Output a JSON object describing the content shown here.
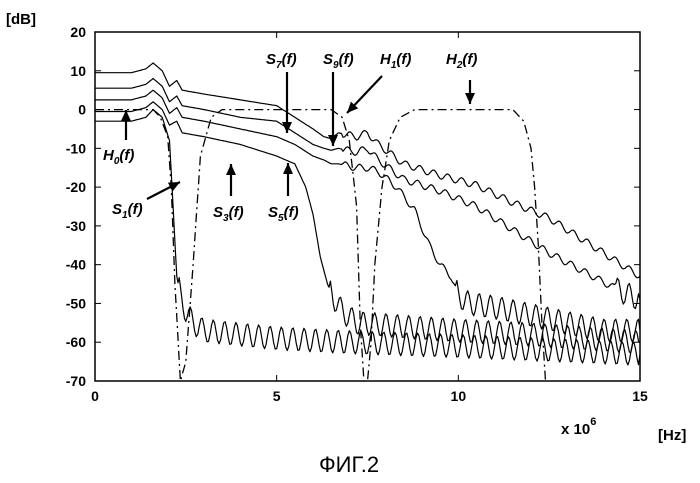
{
  "caption": "ФИГ.2",
  "chart_data": {
    "type": "line",
    "title": "",
    "ylabel": "[dB]",
    "xlabel": "[Hz]",
    "x_multiplier_label": "x 10",
    "x_multiplier_exp": "6",
    "xlim": [
      0,
      15
    ],
    "ylim": [
      -70,
      20
    ],
    "x_ticks": [
      "0",
      "5",
      "10",
      "15"
    ],
    "y_ticks": [
      "20",
      "10",
      "0",
      "-10",
      "-20",
      "-30",
      "-40",
      "-50",
      "-60",
      "-70"
    ],
    "grid": false,
    "legend": "none",
    "annotations": [
      {
        "text": "H",
        "sub": "0",
        "suffix": "(f)"
      },
      {
        "text": "S",
        "sub": "1",
        "suffix": "(f)"
      },
      {
        "text": "S",
        "sub": "3",
        "suffix": "(f)"
      },
      {
        "text": "S",
        "sub": "5",
        "suffix": "(f)"
      },
      {
        "text": "S",
        "sub": "7",
        "suffix": "(f)"
      },
      {
        "text": "S",
        "sub": "9",
        "suffix": "(f)"
      },
      {
        "text": "H",
        "sub": "1",
        "suffix": "(f)"
      },
      {
        "text": "H",
        "sub": "2",
        "suffix": "(f)"
      }
    ],
    "series": [
      {
        "style": "solid",
        "x": [
          0,
          1.0,
          1.4,
          1.6,
          1.85,
          2.05,
          2.25,
          2.4,
          3.0,
          4.0,
          5.0,
          5.5,
          6.0,
          6.3,
          6.5,
          6.7,
          7.2,
          7.5,
          7.8,
          8.5,
          9.5,
          10.5,
          11.5,
          12.5,
          13.5,
          14.5,
          15
        ],
        "y": [
          9.5,
          9.5,
          10.5,
          12,
          10,
          6,
          7.5,
          5,
          4,
          2.5,
          1,
          -2,
          -5,
          -7,
          -7.5,
          -6,
          -7,
          -6,
          -9,
          -14,
          -17,
          -19.5,
          -24,
          -28,
          -34,
          -40,
          -43
        ]
      },
      {
        "style": "solid",
        "x": [
          0,
          1.0,
          1.4,
          1.6,
          1.85,
          2.05,
          2.25,
          2.4,
          3.0,
          4.0,
          5.0,
          5.5,
          6.0,
          6.3,
          6.5,
          6.7,
          7.2,
          7.5,
          7.8,
          8.5,
          9.5,
          10.5,
          11.5,
          12.5,
          13.5,
          14.5,
          15
        ],
        "y": [
          5.5,
          5.5,
          6.5,
          8,
          6,
          2,
          3.5,
          1,
          0,
          -2,
          -3,
          -6,
          -9,
          -10,
          -10.5,
          -10,
          -11,
          -10,
          -13,
          -18,
          -21,
          -25,
          -31,
          -37,
          -42,
          -47,
          -49
        ]
      },
      {
        "style": "solid",
        "x": [
          0,
          1.0,
          1.4,
          1.6,
          1.85,
          2.05,
          2.25,
          2.4,
          3.0,
          4.0,
          5.0,
          5.5,
          6.0,
          6.3,
          6.5,
          6.7,
          7.2,
          7.5,
          7.8,
          8.3,
          8.8,
          9.2,
          9.5,
          9.8,
          10.0,
          10.3,
          11.0,
          12.0,
          13.0,
          14.0,
          15
        ],
        "y": [
          2.5,
          2.5,
          3.5,
          5,
          3,
          -1,
          0.5,
          -2,
          -3,
          -5,
          -7,
          -9,
          -12,
          -13,
          -14,
          -14,
          -15,
          -15,
          -16,
          -20,
          -26,
          -35,
          -40,
          -43,
          -48,
          -50,
          -51,
          -53,
          -55,
          -57,
          -57
        ]
      },
      {
        "style": "solid",
        "x": [
          0,
          1.0,
          1.4,
          1.6,
          1.85,
          2.05,
          2.25,
          2.4,
          3.0,
          4.0,
          5.0,
          5.5,
          5.8,
          6.0,
          6.2,
          6.4,
          6.6,
          6.8,
          7.2,
          8.5,
          10,
          12,
          15
        ],
        "y": [
          -0.5,
          -0.5,
          0.5,
          2,
          0,
          -4,
          -3,
          -6,
          -7,
          -9,
          -12,
          -14,
          -20,
          -27,
          -38,
          -45,
          -49,
          -52,
          -55,
          -56,
          -57,
          -58,
          -60
        ]
      },
      {
        "style": "solid",
        "x": [
          0,
          1.0,
          1.4,
          1.6,
          1.85,
          2.05,
          2.15,
          2.25,
          2.35,
          2.5,
          2.7,
          3.0,
          4.0,
          5.0,
          7.0,
          10,
          15
        ],
        "y": [
          -3,
          -3,
          -2,
          0,
          -2,
          -8,
          -25,
          -43,
          -48,
          -52,
          -55,
          -57,
          -58,
          -59,
          -60,
          -61,
          -63
        ]
      },
      {
        "style": "dashdot",
        "x": [
          0,
          1.6,
          1.8,
          2.0,
          2.1,
          2.2,
          2.35,
          2.5,
          2.7,
          2.9,
          3.2,
          3.5,
          4.0,
          6.0,
          6.5,
          6.8,
          7.0,
          7.2,
          7.3,
          7.4,
          7.5,
          7.6,
          7.7
        ],
        "y": [
          0,
          0,
          -2,
          -7,
          -20,
          -45,
          -70,
          -65,
          -40,
          -12,
          -2,
          0,
          0,
          0,
          0,
          -2,
          -8,
          -25,
          -55,
          -70,
          -70,
          -60,
          -40
        ]
      },
      {
        "style": "dashdot",
        "x": [
          7.7,
          7.9,
          8.1,
          8.4,
          8.8,
          9.5,
          11.0,
          11.5,
          11.8,
          12.0,
          12.1,
          12.2,
          12.3,
          12.4
        ],
        "y": [
          -40,
          -20,
          -8,
          -2,
          0,
          0,
          0,
          0,
          -3,
          -10,
          -20,
          -35,
          -55,
          -70
        ]
      }
    ]
  }
}
